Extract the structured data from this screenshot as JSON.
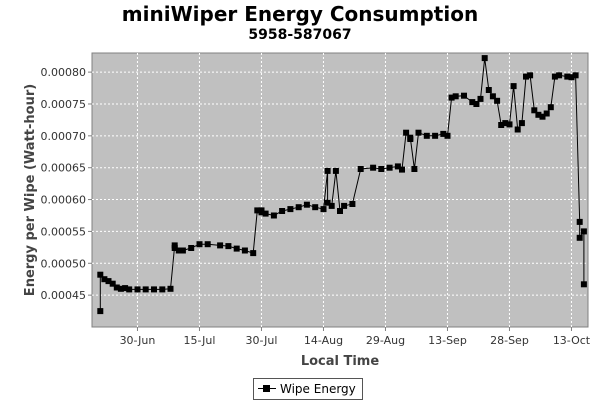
{
  "chart_data": {
    "type": "line",
    "title": "miniWiper Energy Consumption",
    "subtitle": "5958-587067",
    "xlabel": "Local Time",
    "ylabel": "Energy per Wipe (Watt-hour)",
    "x_ticks": [
      "30-Jun",
      "15-Jul",
      "30-Jul",
      "14-Aug",
      "29-Aug",
      "13-Sep",
      "28-Sep",
      "13-Oct"
    ],
    "x_range": [
      "2019-06-19",
      "2019-10-17"
    ],
    "ylim": [
      0.0004,
      0.00083
    ],
    "y_ticks": [
      "0.00045",
      "0.00050",
      "0.00055",
      "0.00060",
      "0.00065",
      "0.00070",
      "0.00075",
      "0.00080"
    ],
    "y_tick_values": [
      0.00045,
      0.0005,
      0.00055,
      0.0006,
      0.00065,
      0.0007,
      0.00075,
      0.0008
    ],
    "grid": true,
    "legend_position": "bottom-center",
    "series": [
      {
        "name": "Wipe Energy",
        "color": "#000000",
        "marker": "square",
        "x": [
          "2019-06-21",
          "2019-06-21",
          "2019-06-22",
          "2019-06-23",
          "2019-06-24",
          "2019-06-25",
          "2019-06-26",
          "2019-06-27",
          "2019-06-28",
          "2019-06-30",
          "2019-07-02",
          "2019-07-04",
          "2019-07-06",
          "2019-07-08",
          "2019-07-09",
          "2019-07-09",
          "2019-07-10",
          "2019-07-11",
          "2019-07-13",
          "2019-07-15",
          "2019-07-17",
          "2019-07-20",
          "2019-07-22",
          "2019-07-24",
          "2019-07-26",
          "2019-07-28",
          "2019-07-29",
          "2019-07-30",
          "2019-07-30",
          "2019-07-31",
          "2019-08-02",
          "2019-08-04",
          "2019-08-06",
          "2019-08-08",
          "2019-08-10",
          "2019-08-12",
          "2019-08-14",
          "2019-08-15",
          "2019-08-15",
          "2019-08-16",
          "2019-08-17",
          "2019-08-18",
          "2019-08-19",
          "2019-08-21",
          "2019-08-23",
          "2019-08-26",
          "2019-08-28",
          "2019-08-30",
          "2019-09-01",
          "2019-09-02",
          "2019-09-03",
          "2019-09-04",
          "2019-09-04",
          "2019-09-05",
          "2019-09-06",
          "2019-09-08",
          "2019-09-10",
          "2019-09-12",
          "2019-09-13",
          "2019-09-14",
          "2019-09-15",
          "2019-09-17",
          "2019-09-19",
          "2019-09-20",
          "2019-09-21",
          "2019-09-22",
          "2019-09-23",
          "2019-09-24",
          "2019-09-25",
          "2019-09-26",
          "2019-09-27",
          "2019-09-28",
          "2019-09-29",
          "2019-09-30",
          "2019-10-01",
          "2019-10-02",
          "2019-10-03",
          "2019-10-04",
          "2019-10-05",
          "2019-10-06",
          "2019-10-07",
          "2019-10-08",
          "2019-10-09",
          "2019-10-10",
          "2019-10-12",
          "2019-10-13",
          "2019-10-14",
          "2019-10-15",
          "2019-10-15",
          "2019-10-16",
          "2019-10-16"
        ],
        "y": [
          0.000425,
          0.000482,
          0.000475,
          0.000472,
          0.000468,
          0.000462,
          0.00046,
          0.000461,
          0.000459,
          0.000459,
          0.000459,
          0.000459,
          0.000459,
          0.00046,
          0.000528,
          0.000524,
          0.00052,
          0.00052,
          0.000524,
          0.00053,
          0.00053,
          0.000528,
          0.000527,
          0.000523,
          0.00052,
          0.000516,
          0.000583,
          0.000583,
          0.00058,
          0.000578,
          0.000575,
          0.000582,
          0.000585,
          0.000588,
          0.000592,
          0.000588,
          0.000585,
          0.000645,
          0.000595,
          0.00059,
          0.000645,
          0.000582,
          0.00059,
          0.000593,
          0.000648,
          0.00065,
          0.000648,
          0.00065,
          0.000652,
          0.000647,
          0.000705,
          0.000695,
          0.000697,
          0.000648,
          0.000705,
          0.0007,
          0.0007,
          0.000703,
          0.0007,
          0.00076,
          0.000762,
          0.000763,
          0.000753,
          0.00075,
          0.000758,
          0.000822,
          0.000772,
          0.000762,
          0.000755,
          0.000717,
          0.00072,
          0.000718,
          0.000778,
          0.00071,
          0.00072,
          0.000793,
          0.000795,
          0.00074,
          0.000733,
          0.00073,
          0.000735,
          0.000745,
          0.000793,
          0.000795,
          0.000793,
          0.000792,
          0.000795,
          0.000565,
          0.00054,
          0.00055,
          0.000467
        ]
      }
    ]
  },
  "legend": {
    "label": "Wipe Energy"
  }
}
